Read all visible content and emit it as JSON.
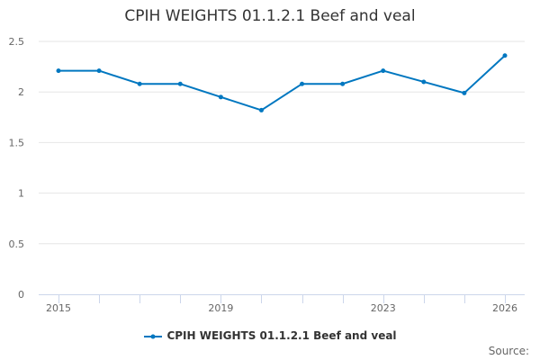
{
  "chart_data": {
    "type": "line",
    "title": "CPIH WEIGHTS 01.1.2.1 Beef and veal",
    "x": [
      2015,
      2016,
      2017,
      2018,
      2019,
      2020,
      2021,
      2022,
      2023,
      2024,
      2025,
      2026
    ],
    "x_tick_labels": [
      "2015",
      "2019",
      "2023",
      "2026"
    ],
    "y_tick_labels": [
      "0",
      "0.5",
      "1",
      "1.5",
      "2",
      "2.5"
    ],
    "ylim": [
      0,
      2.5
    ],
    "grid": true,
    "series": [
      {
        "name": "CPIH WEIGHTS 01.1.2.1 Beef and veal",
        "color": "#0077c0",
        "values": [
          2.21,
          2.21,
          2.08,
          2.08,
          1.95,
          1.82,
          2.08,
          2.08,
          2.21,
          2.1,
          1.99,
          2.36
        ]
      }
    ],
    "legend": "bottom-center",
    "source_label": "Source:"
  }
}
